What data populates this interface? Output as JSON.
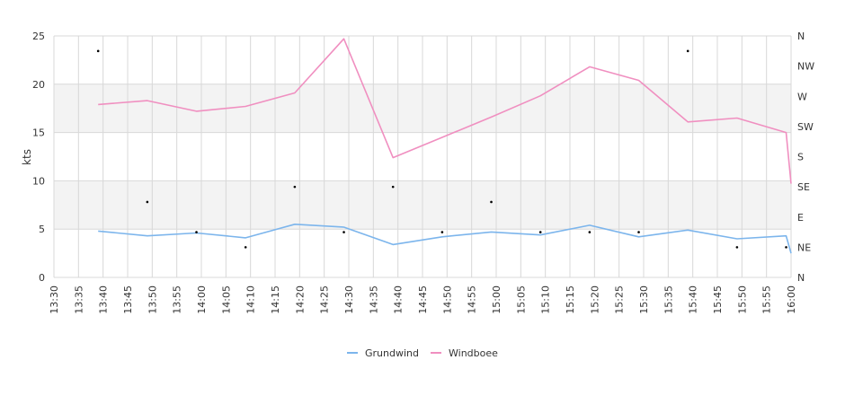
{
  "chart_data": {
    "type": "line",
    "ylabel": "kts",
    "ylim": [
      0,
      25
    ],
    "y_ticks": [
      "0",
      "5",
      "10",
      "15",
      "20",
      "25"
    ],
    "x_ticks": [
      "13:30",
      "13:35",
      "13:40",
      "13:45",
      "13:50",
      "13:55",
      "14:00",
      "14:05",
      "14:10",
      "14:15",
      "14:20",
      "14:25",
      "14:30",
      "14:35",
      "14:40",
      "14:45",
      "14:50",
      "14:55",
      "15:00",
      "15:05",
      "15:10",
      "15:15",
      "15:20",
      "15:25",
      "15:30",
      "15:35",
      "15:40",
      "15:45",
      "15:50",
      "15:55",
      "16:00"
    ],
    "direction_ticks": [
      "N",
      "NE",
      "E",
      "SE",
      "S",
      "SW",
      "W",
      "NW",
      "N"
    ],
    "direction_range_deg": [
      0,
      360
    ],
    "grid": true,
    "bands": [
      [
        5,
        10
      ],
      [
        15,
        20
      ]
    ],
    "legend": "bottom",
    "series": [
      {
        "name": "Grundwind",
        "color": "#7cb5ec",
        "points": [
          [
            "13:39",
            4.8
          ],
          [
            "13:49",
            4.3
          ],
          [
            "13:59",
            4.6
          ],
          [
            "14:09",
            4.1
          ],
          [
            "14:19",
            5.5
          ],
          [
            "14:29",
            5.2
          ],
          [
            "14:39",
            3.4
          ],
          [
            "14:49",
            4.2
          ],
          [
            "14:59",
            4.7
          ],
          [
            "15:09",
            4.4
          ],
          [
            "15:19",
            5.4
          ],
          [
            "15:29",
            4.2
          ],
          [
            "15:39",
            4.9
          ],
          [
            "15:49",
            4.0
          ],
          [
            "15:59",
            4.3
          ],
          [
            "16:00",
            2.5
          ]
        ]
      },
      {
        "name": "Windboee",
        "color": "#f08fc0",
        "points": [
          [
            "13:39",
            17.9
          ],
          [
            "13:49",
            18.3
          ],
          [
            "13:59",
            17.2
          ],
          [
            "14:09",
            17.7
          ],
          [
            "14:19",
            19.1
          ],
          [
            "14:29",
            24.7
          ],
          [
            "14:39",
            12.4
          ],
          [
            "14:49",
            14.5
          ],
          [
            "14:59",
            16.6
          ],
          [
            "15:09",
            18.8
          ],
          [
            "15:19",
            21.8
          ],
          [
            "15:29",
            20.4
          ],
          [
            "15:39",
            16.1
          ],
          [
            "15:49",
            16.5
          ],
          [
            "15:59",
            15.0
          ],
          [
            "16:00",
            9.7
          ]
        ]
      }
    ],
    "direction_points": [
      [
        "13:39",
        337.5
      ],
      [
        "13:49",
        112.5
      ],
      [
        "13:59",
        67.5
      ],
      [
        "14:09",
        45
      ],
      [
        "14:19",
        135
      ],
      [
        "14:29",
        67.5
      ],
      [
        "14:39",
        135
      ],
      [
        "14:49",
        67.5
      ],
      [
        "14:59",
        112.5
      ],
      [
        "15:09",
        67.5
      ],
      [
        "15:19",
        67.5
      ],
      [
        "15:29",
        67.5
      ],
      [
        "15:39",
        337.5
      ],
      [
        "15:49",
        45
      ],
      [
        "15:59",
        45
      ]
    ]
  }
}
